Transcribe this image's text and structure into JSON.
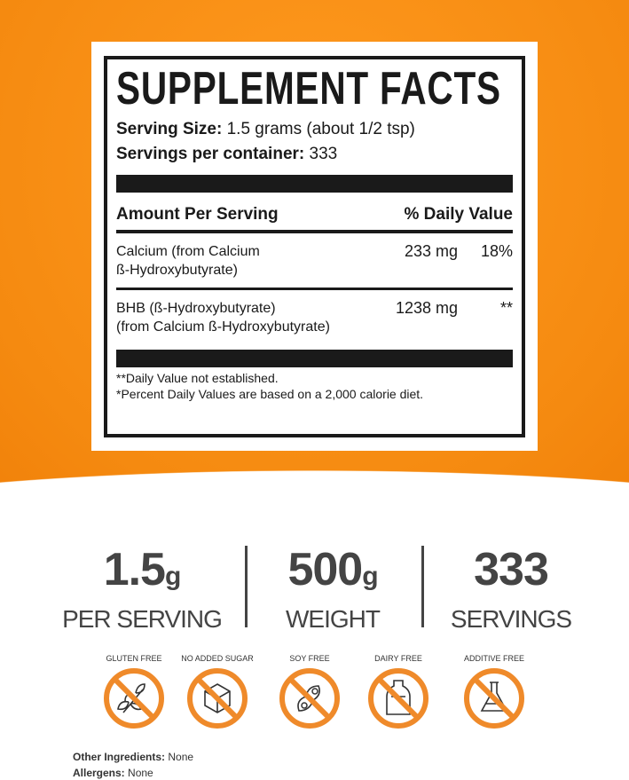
{
  "facts": {
    "title": "SUPPLEMENT FACTS",
    "serving_size_label": "Serving Size:",
    "serving_size": "1.5 grams (about 1/2 tsp)",
    "servings_label": "Servings per container:",
    "servings": "333",
    "amount_header": "Amount Per Serving",
    "dv_header": "% Daily Value",
    "nutrients": [
      {
        "name1": "Calcium (from Calcium",
        "name2": "ß-Hydroxybutyrate)",
        "amount": "233 mg",
        "dv": "18%"
      },
      {
        "name1": "BHB (ß-Hydroxybutyrate)",
        "name2": "(from Calcium ß-Hydroxybutyrate)",
        "amount": "1238 mg",
        "dv": "**"
      }
    ],
    "footnote1": "**Daily Value not established.",
    "footnote2": "*Percent Daily Values are based on a 2,000 calorie diet."
  },
  "stats": [
    {
      "value": "1.5",
      "unit": "g",
      "label": "PER SERVING"
    },
    {
      "value": "500",
      "unit": "g",
      "label": "WEIGHT"
    },
    {
      "value": "333",
      "unit": "",
      "label": "SERVINGS"
    }
  ],
  "badges": [
    {
      "label": "GLUTEN FREE",
      "icon": "wheat-icon"
    },
    {
      "label": "NO ADDED SUGAR",
      "icon": "sugar-cube-icon"
    },
    {
      "label": "SOY FREE",
      "icon": "soybean-icon"
    },
    {
      "label": "DAIRY FREE",
      "icon": "milk-bottle-icon"
    },
    {
      "label": "ADDITIVE FREE",
      "icon": "flask-icon"
    }
  ],
  "other_ingredients_label": "Other Ingredients:",
  "other_ingredients": "None",
  "allergens_label": "Allergens:",
  "allergens": "None",
  "colors": {
    "orange": "#f58a10",
    "badge": "#ef8a2a",
    "text": "#1a1a1a"
  }
}
